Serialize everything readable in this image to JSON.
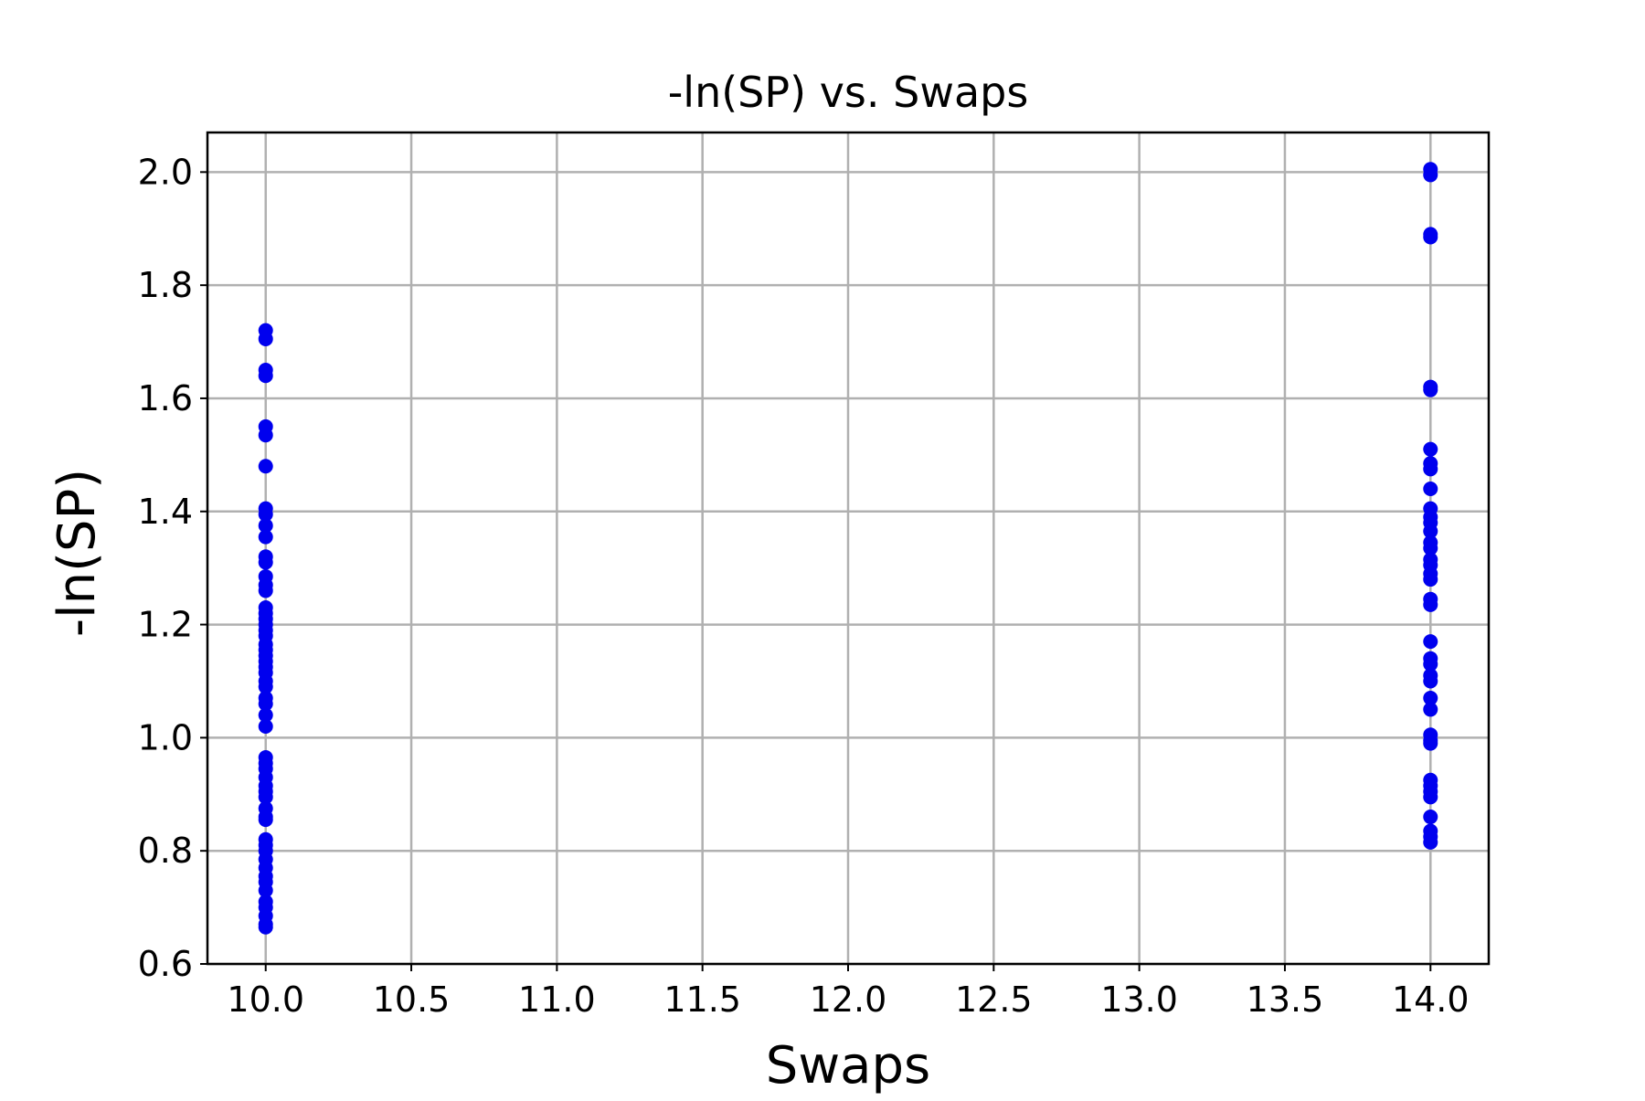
{
  "chart_data": {
    "type": "scatter",
    "title": "-ln(SP) vs. Swaps",
    "xlabel": "Swaps",
    "ylabel": "-ln(SP)",
    "xlim": [
      9.8,
      14.2
    ],
    "ylim": [
      0.6,
      2.07
    ],
    "xticks": [
      10.0,
      10.5,
      11.0,
      11.5,
      12.0,
      12.5,
      13.0,
      13.5,
      14.0
    ],
    "xtick_labels": [
      "10.0",
      "10.5",
      "11.0",
      "11.5",
      "12.0",
      "12.5",
      "13.0",
      "13.5",
      "14.0"
    ],
    "yticks": [
      0.6,
      0.8,
      1.0,
      1.2,
      1.4,
      1.6,
      1.8,
      2.0
    ],
    "ytick_labels": [
      "0.6",
      "0.8",
      "1.0",
      "1.2",
      "1.4",
      "1.6",
      "1.8",
      "2.0"
    ],
    "grid": true,
    "marker_color": "#0000ee",
    "series": [
      {
        "points": [
          [
            10,
            1.72
          ],
          [
            10,
            1.705
          ],
          [
            10,
            1.65
          ],
          [
            10,
            1.64
          ],
          [
            10,
            1.55
          ],
          [
            10,
            1.535
          ],
          [
            10,
            1.48
          ],
          [
            10,
            1.405
          ],
          [
            10,
            1.395
          ],
          [
            10,
            1.375
          ],
          [
            10,
            1.355
          ],
          [
            10,
            1.32
          ],
          [
            10,
            1.31
          ],
          [
            10,
            1.285
          ],
          [
            10,
            1.27
          ],
          [
            10,
            1.26
          ],
          [
            10,
            1.23
          ],
          [
            10,
            1.22
          ],
          [
            10,
            1.21
          ],
          [
            10,
            1.2
          ],
          [
            10,
            1.19
          ],
          [
            10,
            1.18
          ],
          [
            10,
            1.165
          ],
          [
            10,
            1.155
          ],
          [
            10,
            1.145
          ],
          [
            10,
            1.135
          ],
          [
            10,
            1.125
          ],
          [
            10,
            1.115
          ],
          [
            10,
            1.1
          ],
          [
            10,
            1.09
          ],
          [
            10,
            1.07
          ],
          [
            10,
            1.06
          ],
          [
            10,
            1.04
          ],
          [
            10,
            1.02
          ],
          [
            10,
            0.965
          ],
          [
            10,
            0.955
          ],
          [
            10,
            0.945
          ],
          [
            10,
            0.93
          ],
          [
            10,
            0.915
          ],
          [
            10,
            0.905
          ],
          [
            10,
            0.895
          ],
          [
            10,
            0.875
          ],
          [
            10,
            0.86
          ],
          [
            10,
            0.855
          ],
          [
            10,
            0.82
          ],
          [
            10,
            0.81
          ],
          [
            10,
            0.8
          ],
          [
            10,
            0.785
          ],
          [
            10,
            0.77
          ],
          [
            10,
            0.755
          ],
          [
            10,
            0.745
          ],
          [
            10,
            0.73
          ],
          [
            10,
            0.71
          ],
          [
            10,
            0.7
          ],
          [
            10,
            0.685
          ],
          [
            10,
            0.67
          ],
          [
            10,
            0.665
          ],
          [
            14,
            2.005
          ],
          [
            14,
            1.995
          ],
          [
            14,
            1.89
          ],
          [
            14,
            1.885
          ],
          [
            14,
            1.62
          ],
          [
            14,
            1.615
          ],
          [
            14,
            1.51
          ],
          [
            14,
            1.485
          ],
          [
            14,
            1.475
          ],
          [
            14,
            1.44
          ],
          [
            14,
            1.405
          ],
          [
            14,
            1.39
          ],
          [
            14,
            1.38
          ],
          [
            14,
            1.365
          ],
          [
            14,
            1.345
          ],
          [
            14,
            1.335
          ],
          [
            14,
            1.315
          ],
          [
            14,
            1.305
          ],
          [
            14,
            1.29
          ],
          [
            14,
            1.28
          ],
          [
            14,
            1.245
          ],
          [
            14,
            1.235
          ],
          [
            14,
            1.17
          ],
          [
            14,
            1.14
          ],
          [
            14,
            1.13
          ],
          [
            14,
            1.11
          ],
          [
            14,
            1.1
          ],
          [
            14,
            1.07
          ],
          [
            14,
            1.05
          ],
          [
            14,
            1.005
          ],
          [
            14,
            0.995
          ],
          [
            14,
            0.99
          ],
          [
            14,
            0.925
          ],
          [
            14,
            0.915
          ],
          [
            14,
            0.905
          ],
          [
            14,
            0.895
          ],
          [
            14,
            0.86
          ],
          [
            14,
            0.835
          ],
          [
            14,
            0.825
          ],
          [
            14,
            0.815
          ]
        ]
      }
    ]
  }
}
